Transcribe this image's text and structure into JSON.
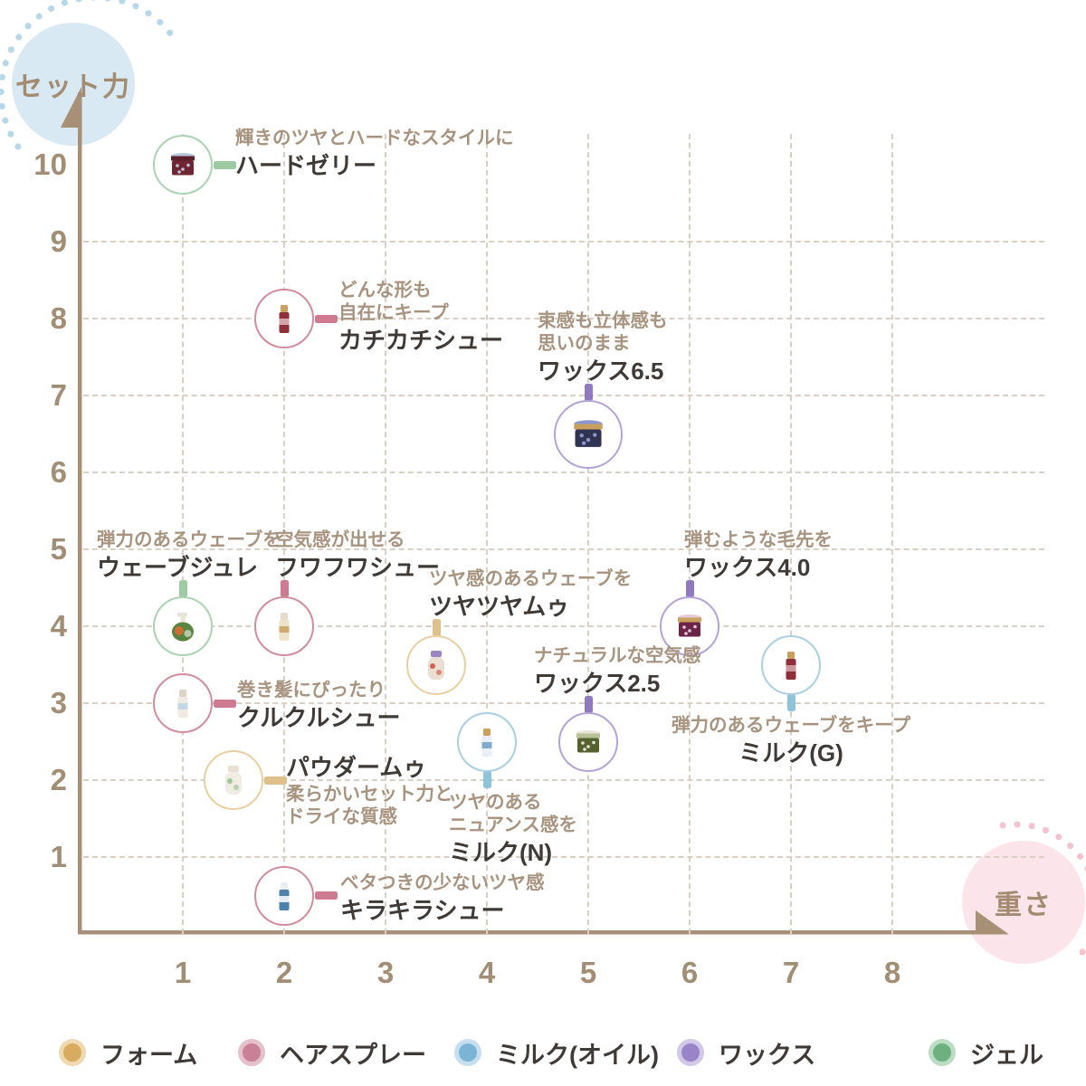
{
  "axes": {
    "y_label": "セット力",
    "x_label": "重さ"
  },
  "palette": {
    "axis": "#a89077",
    "grid": "#d9cfc3",
    "tick_text": "#a28e75",
    "caption_text": "#a8937e",
    "label_text": "#3f3a36",
    "y_bubble_fill": "#d8e9f4",
    "y_bubble_dots": "#b7d7ea",
    "x_bubble_fill": "#fbe5eb",
    "x_bubble_dots": "#f3c3d0"
  },
  "category_styles": {
    "foam": {
      "name": "フォーム",
      "ring": "#e9cf9e",
      "connector": "#dfc08a",
      "dot": "#d9ab5f",
      "dot_ring": "#eed9b0"
    },
    "spray": {
      "name": "ヘアスプレー",
      "ring": "#d18d9d",
      "connector": "#ce7a90",
      "dot": "#c88196",
      "dot_ring": "#e4c1cb"
    },
    "milk": {
      "name": "ミルク(オイル)",
      "ring": "#a9cfe3",
      "connector": "#90c2da",
      "dot": "#7cb4d5",
      "dot_ring": "#c5dfee"
    },
    "wax": {
      "name": "ワックス",
      "ring": "#b3a3d7",
      "connector": "#8f7abf",
      "dot": "#9884c6",
      "dot_ring": "#d2c8e7"
    },
    "gel": {
      "name": "ジェル",
      "ring": "#abd3b1",
      "connector": "#9ccaa3",
      "dot": "#6eb07f",
      "dot_ring": "#bcdcc4"
    }
  },
  "legend_order": [
    "foam",
    "spray",
    "milk",
    "wax",
    "gel"
  ],
  "legend_lefts": [
    65,
    263,
    502,
    748,
    1026
  ],
  "chart_data": {
    "type": "scatter",
    "title": "",
    "xlabel": "重さ",
    "ylabel": "セット力",
    "xlim": [
      0,
      8.6
    ],
    "ylim": [
      0,
      10.8
    ],
    "x_ticks": [
      1,
      2,
      3,
      4,
      5,
      6,
      7,
      8
    ],
    "y_ticks": [
      1,
      2,
      3,
      4,
      5,
      6,
      7,
      8,
      9,
      10
    ],
    "grid": "dashed",
    "legend_position": "bottom",
    "series": [
      {
        "category": "gel",
        "name": "ジェル",
        "points": [
          {
            "label": "ハードゼリー",
            "caption": [
              "輝きのツヤとハードなスタイルに"
            ],
            "x": 1,
            "y": 10,
            "dir": "right",
            "dx": 58,
            "dy": -42,
            "glyph": {
              "shape": "jar",
              "body": "#6f2532",
              "cap": "#5d1f2a",
              "accent": "#b9c6da"
            }
          },
          {
            "label": "ウェーブジュレ",
            "caption": [
              "弾力のあるウェーブを"
            ],
            "x": 1,
            "y": 4,
            "dir": "up",
            "dx": -95,
            "glyph": {
              "shape": "pump",
              "body": "#58853f",
              "cap": "#e9e4d8",
              "accent": "#cb7034"
            }
          }
        ]
      },
      {
        "category": "spray",
        "name": "ヘアスプレー",
        "points": [
          {
            "label": "カチカチシュー",
            "caption": [
              "どんな形も",
              "自在にキープ"
            ],
            "x": 2,
            "y": 8,
            "dir": "right",
            "dx": 60,
            "dy": -44,
            "glyph": {
              "shape": "spray",
              "body": "#8e2f3a",
              "cap": "#caa05f",
              "accent": "#e0b9be"
            }
          },
          {
            "label": "フワフワシュー",
            "caption": [
              "空気感が出せる"
            ],
            "x": 2,
            "y": 4,
            "dir": "up",
            "dx": -10,
            "glyph": {
              "shape": "spray",
              "body": "#ede3cb",
              "cap": "#e5dcc8",
              "accent": "#caa05f"
            }
          },
          {
            "label": "クルクルシュー",
            "caption": [
              "巻き髪にぴったり"
            ],
            "x": 1,
            "y": 3,
            "dir": "right",
            "dx": 60,
            "dy": -27,
            "glyph": {
              "shape": "spray",
              "body": "#f0eae2",
              "cap": "#ddd3c6",
              "accent": "#bcd3e2"
            }
          },
          {
            "label": "キラキラシュー",
            "caption": [
              "ベタつきの少ないツヤ感"
            ],
            "x": 2,
            "y": 0.5,
            "dir": "right",
            "dx": 62,
            "dy": -27,
            "glyph": {
              "shape": "spray",
              "body": "#4d80ab",
              "cap": "#e8edf1",
              "accent": "#ffffff"
            }
          }
        ]
      },
      {
        "category": "wax",
        "name": "ワックス",
        "points": [
          {
            "label": "ワックス6.5",
            "caption": [
              "束感も立体感も",
              "思いのまま"
            ],
            "x": 5,
            "y": 6.5,
            "dir": "up",
            "dx": -56,
            "big": true,
            "glyph": {
              "shape": "jar",
              "body": "#303352",
              "cap": "#caa05f",
              "accent": "#8d96cd"
            }
          },
          {
            "label": "ワックス4.0",
            "caption": [
              "弾むような毛先を"
            ],
            "x": 6,
            "y": 4,
            "dir": "up",
            "dx": -6,
            "glyph": {
              "shape": "jar",
              "body": "#6d2547",
              "cap": "#caa05f",
              "accent": "#e5cbd9"
            }
          },
          {
            "label": "ワックス2.5",
            "caption": [
              "ナチュラルな空気感"
            ],
            "x": 5,
            "y": 2.5,
            "dir": "up",
            "dx": -60,
            "glyph": {
              "shape": "jar",
              "body": "#566130",
              "cap": "#b9c197",
              "accent": "#e9e4d4"
            }
          }
        ]
      },
      {
        "category": "foam",
        "name": "フォーム",
        "points": [
          {
            "label": "ツヤツヤムゥ",
            "caption": [
              "ツヤ感のあるウェーブを"
            ],
            "x": 3.5,
            "y": 3.5,
            "dir": "up",
            "dx": -8,
            "glyph": {
              "shape": "bottle",
              "body": "#eadfd2",
              "cap": "#9a86c0",
              "accent": "#d6604f"
            }
          },
          {
            "label": "パウダームゥ",
            "caption": [
              "柔らかいセット力と",
              "ドライな質感"
            ],
            "x": 1.5,
            "y": 2,
            "dir": "right",
            "dx": 58,
            "dy": -29,
            "label_first": true,
            "glyph": {
              "shape": "bottle",
              "body": "#f1ece3",
              "cap": "#e7e0d3",
              "accent": "#9ec79e"
            }
          }
        ]
      },
      {
        "category": "milk",
        "name": "ミルク(オイル)",
        "points": [
          {
            "label": "ミルク(N)",
            "caption": [
              "ツヤのある",
              "ニュアンス感を"
            ],
            "x": 4,
            "y": 2.5,
            "dir": "down",
            "dx": -42,
            "glyph": {
              "shape": "spray",
              "body": "#e9eff4",
              "cap": "#caa05f",
              "accent": "#6d9ec7"
            }
          },
          {
            "label": "ミルク(G)",
            "caption": [
              "弾力のあるウェーブをキープ"
            ],
            "x": 7,
            "y": 3.5,
            "dir": "down",
            "align": "center",
            "glyph": {
              "shape": "spray",
              "body": "#8e2f3a",
              "cap": "#caa05f",
              "accent": "#d8a6ac"
            }
          }
        ]
      }
    ]
  }
}
